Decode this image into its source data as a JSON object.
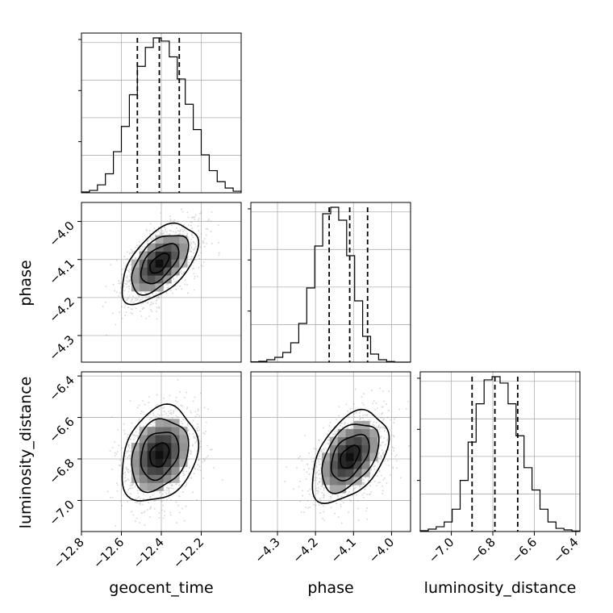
{
  "chart_data": {
    "type": "corner",
    "parameters": [
      "geocent_time",
      "phase",
      "luminosity_distance"
    ],
    "axis_labels": {
      "geocent_time": "geocent_time",
      "phase": "phase",
      "luminosity_distance": "luminosity_distance"
    },
    "ranges": {
      "geocent_time": [
        -12.8,
        -12.0
      ],
      "phase": [
        -4.37,
        -3.95
      ],
      "luminosity_distance": [
        -7.15,
        -6.38
      ]
    },
    "ticks": {
      "geocent_time": [
        -12.8,
        -12.6,
        -12.4,
        -12.2
      ],
      "phase": [
        -4.3,
        -4.2,
        -4.1,
        -4.0
      ],
      "luminosity_distance": [
        -7.0,
        -6.8,
        -6.6,
        -6.4
      ]
    },
    "tick_labels": {
      "geocent_time": [
        "−12.8",
        "−12.6",
        "−12.4",
        "−12.2"
      ],
      "phase": [
        "−4.3",
        "−4.2",
        "−4.1",
        "−4.0"
      ],
      "luminosity_distance": [
        "−7.0",
        "−6.8",
        "−6.6",
        "−6.4"
      ]
    },
    "grid": true,
    "histograms": {
      "geocent_time": {
        "bins": 20,
        "counts": [
          0.5,
          1.5,
          5,
          12,
          26,
          42,
          62,
          80,
          92,
          98,
          96,
          86,
          72,
          56,
          40,
          24,
          14,
          7,
          3,
          1
        ],
        "quantiles": [
          -12.52,
          -12.41,
          -12.31
        ]
      },
      "phase": {
        "bins": 20,
        "counts": [
          0.2,
          0.5,
          1.5,
          3,
          6,
          12,
          24,
          46,
          72,
          92,
          96,
          88,
          66,
          38,
          16,
          5,
          1.5,
          0.4,
          0,
          0
        ],
        "quantiles": [
          -4.164,
          -4.11,
          -4.063
        ]
      },
      "luminosity_distance": {
        "bins": 20,
        "counts": [
          0.5,
          1.5,
          3,
          6,
          14,
          32,
          56,
          80,
          95,
          97,
          93,
          80,
          60,
          40,
          26,
          14,
          6,
          2,
          1,
          0.3
        ],
        "quantiles": [
          -6.9,
          -6.79,
          -6.68
        ]
      }
    },
    "joint": [
      {
        "x": "geocent_time",
        "y": "phase",
        "mean": [
          -12.41,
          -4.11
        ],
        "sigma": [
          0.095,
          0.052
        ],
        "rho": 0.55
      },
      {
        "x": "geocent_time",
        "y": "luminosity_distance",
        "mean": [
          -12.41,
          -6.78
        ],
        "sigma": [
          0.095,
          0.115
        ],
        "rho": 0.25
      },
      {
        "x": "phase",
        "y": "luminosity_distance",
        "mean": [
          -4.11,
          -6.79
        ],
        "sigma": [
          0.05,
          0.11
        ],
        "rho": 0.45
      }
    ],
    "contour_levels_sigma": [
      0.5,
      1.0,
      1.5,
      2.0
    ]
  }
}
